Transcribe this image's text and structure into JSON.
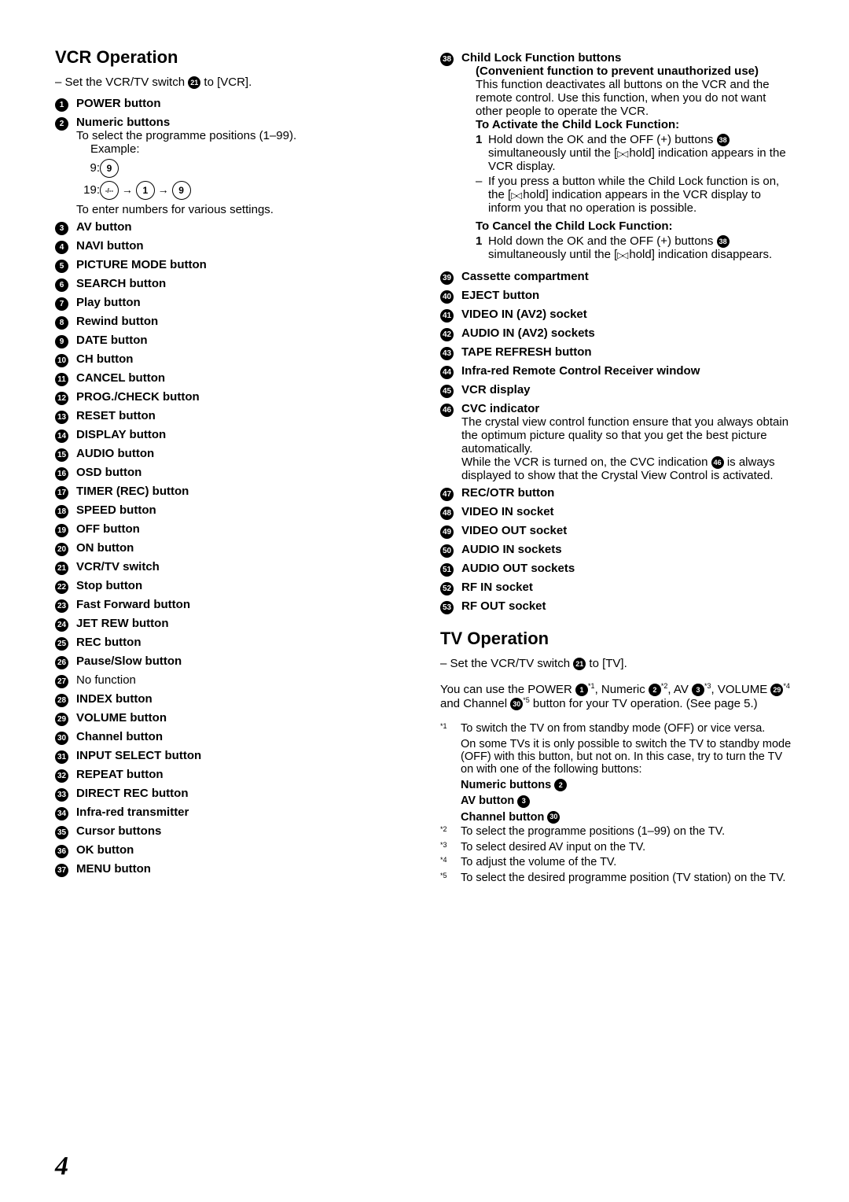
{
  "vcr": {
    "title": "VCR Operation",
    "setline_prefix": "– Set the VCR/TV switch ",
    "setline_ref": "21",
    "setline_suffix": " to [VCR].",
    "items": [
      {
        "n": "1",
        "title": "POWER button"
      },
      {
        "n": "2",
        "title": "Numeric buttons",
        "desc": "To select the programme positions (1–99).",
        "example_label": "Example:",
        "example_rows": [
          {
            "label": "9:",
            "keys": [
              "9"
            ]
          },
          {
            "label": "19:",
            "keys": [
              "-/--",
              "1",
              "9"
            ]
          }
        ],
        "desc2": "To enter numbers for various settings."
      },
      {
        "n": "3",
        "title": "AV button"
      },
      {
        "n": "4",
        "title": "NAVI button"
      },
      {
        "n": "5",
        "title": "PICTURE MODE button"
      },
      {
        "n": "6",
        "title": "SEARCH button"
      },
      {
        "n": "7",
        "title": "Play button"
      },
      {
        "n": "8",
        "title": "Rewind button"
      },
      {
        "n": "9",
        "title": "DATE button"
      },
      {
        "n": "10",
        "title": "CH button"
      },
      {
        "n": "11",
        "title": "CANCEL button"
      },
      {
        "n": "12",
        "title": "PROG./CHECK button"
      },
      {
        "n": "13",
        "title": "RESET button"
      },
      {
        "n": "14",
        "title": "DISPLAY button"
      },
      {
        "n": "15",
        "title": "AUDIO button"
      },
      {
        "n": "16",
        "title": "OSD button"
      },
      {
        "n": "17",
        "title": "TIMER (REC) button"
      },
      {
        "n": "18",
        "title": "SPEED button"
      },
      {
        "n": "19",
        "title": "OFF button"
      },
      {
        "n": "20",
        "title": "ON button"
      },
      {
        "n": "21",
        "title": "VCR/TV switch"
      },
      {
        "n": "22",
        "title": "Stop button"
      },
      {
        "n": "23",
        "title": "Fast Forward button"
      },
      {
        "n": "24",
        "title": "JET REW button"
      },
      {
        "n": "25",
        "title": "REC button"
      },
      {
        "n": "26",
        "title": "Pause/Slow button"
      },
      {
        "n": "27",
        "title": "No function",
        "plain": true
      },
      {
        "n": "28",
        "title": "INDEX button"
      },
      {
        "n": "29",
        "title": "VOLUME button"
      },
      {
        "n": "30",
        "title": "Channel button"
      },
      {
        "n": "31",
        "title": "INPUT SELECT button"
      },
      {
        "n": "32",
        "title": "REPEAT button"
      },
      {
        "n": "33",
        "title": "DIRECT REC button"
      },
      {
        "n": "34",
        "title": "Infra-red transmitter"
      },
      {
        "n": "35",
        "title": "Cursor buttons"
      },
      {
        "n": "36",
        "title": "OK button"
      },
      {
        "n": "37",
        "title": "MENU button"
      }
    ]
  },
  "col2": {
    "child_lock": {
      "n": "38",
      "title": "Child Lock Function buttons",
      "sub": "(Convenient function to prevent unauthorized use)",
      "desc": "This function deactivates all buttons on the VCR and the remote control. Use this function, when you do not want other people to operate the VCR.",
      "activate_head": "To Activate the Child Lock Function:",
      "activate_step1a": "Hold down the OK and the OFF (+) buttons ",
      "activate_step1_ref": "38",
      "activate_step1b": " simultaneously until the [",
      "activate_step1c": " hold] indication appears in the VCR display.",
      "activate_dash_a": "If you press a button while the Child Lock function is on, the [",
      "activate_dash_b": " hold] indication appears in the VCR display to inform you that no operation is possible.",
      "cancel_head": "To Cancel the Child Lock Function:",
      "cancel_step1a": "Hold down the OK and the OFF (+) buttons ",
      "cancel_step1_ref": "38",
      "cancel_step1b": " simultaneously until the [",
      "cancel_step1c": " hold] indication disappears."
    },
    "simple_items": [
      {
        "n": "39",
        "title": "Cassette compartment"
      },
      {
        "n": "40",
        "title": "EJECT button"
      },
      {
        "n": "41",
        "title": "VIDEO IN (AV2)  socket"
      },
      {
        "n": "42",
        "title": "AUDIO IN (AV2) sockets"
      },
      {
        "n": "43",
        "title": "TAPE REFRESH button"
      },
      {
        "n": "44",
        "title": "Infra-red Remote Control Receiver window"
      },
      {
        "n": "45",
        "title": "VCR display"
      }
    ],
    "cvc": {
      "n": "46",
      "title": "CVC indicator",
      "desc1": "The crystal view control function ensure that you always obtain the optimum picture quality so that you get the best picture automatically.",
      "desc2a": "While the VCR is turned on, the CVC indication ",
      "desc2_ref": "46",
      "desc2b": " is always displayed to show that the Crystal View Control is activated."
    },
    "simple_items2": [
      {
        "n": "47",
        "title": "REC/OTR button"
      },
      {
        "n": "48",
        "title": "VIDEO IN socket"
      },
      {
        "n": "49",
        "title": "VIDEO OUT socket"
      },
      {
        "n": "50",
        "title": "AUDIO IN sockets"
      },
      {
        "n": "51",
        "title": "AUDIO OUT sockets"
      },
      {
        "n": "52",
        "title": "RF IN socket"
      },
      {
        "n": "53",
        "title": "RF OUT socket"
      }
    ]
  },
  "tv": {
    "title": "TV Operation",
    "setline_prefix": "– Set the VCR/TV switch ",
    "setline_ref": "21",
    "setline_suffix": " to [TV].",
    "intro_a": "You can use the POWER ",
    "ref1": "1",
    "sup1": "*1",
    "intro_b": ", Numeric ",
    "ref2": "2",
    "sup2": "*2",
    "intro_c": ", AV ",
    "ref3": "3",
    "sup3": "*3",
    "intro_d": ", VOLUME ",
    "ref4": "29",
    "sup4": "*4",
    "intro_e": " and Channel ",
    "ref5": "30",
    "sup5": "*5",
    "intro_f": " button for your TV operation. (See page 5.)",
    "footnotes": [
      {
        "m": "*1",
        "t": "To switch the TV on from standby mode (OFF) or vice versa.",
        "extra": "On some TVs it is only possible to switch the TV to standby mode (OFF) with this button, but not on. In this case, try to turn the TV on with one of the following buttons:",
        "bullets": [
          {
            "label": "Numeric buttons",
            "ref": "2"
          },
          {
            "label": "AV button",
            "ref": "3"
          },
          {
            "label": "Channel button",
            "ref": "30"
          }
        ]
      },
      {
        "m": "*2",
        "t": "To select the programme positions (1–99) on the TV."
      },
      {
        "m": "*3",
        "t": "To select desired AV input on the TV."
      },
      {
        "m": "*4",
        "t": "To adjust the volume of the TV."
      },
      {
        "m": "*5",
        "t": "To select the desired programme position (TV station) on the TV."
      }
    ]
  },
  "page_number": "4"
}
